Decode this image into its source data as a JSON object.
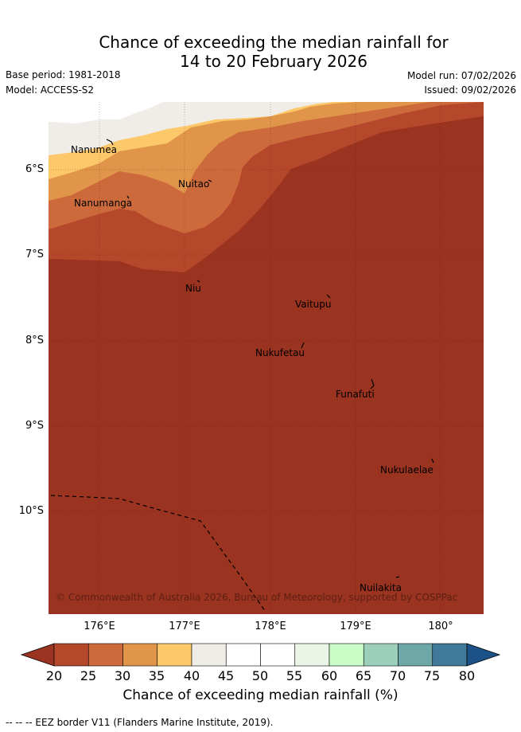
{
  "title": {
    "line1": "Chance of exceeding the median rainfall for",
    "line2": "14 to 20 February 2026"
  },
  "meta": {
    "base_period": "Base period: 1981-2018",
    "model": "Model: ACCESS-S2",
    "model_run": "Model run: 07/02/2026",
    "issued": "Issued: 09/02/2026"
  },
  "axes": {
    "lat_labels": [
      "6°S",
      "7°S",
      "8°S",
      "9°S",
      "10°S"
    ],
    "lon_labels": [
      "176°E",
      "177°E",
      "178°E",
      "179°E",
      "180°"
    ]
  },
  "places": [
    "Nanumea",
    "Nuitao",
    "Nanumanga",
    "Niu",
    "Vaitupu",
    "Nukufetau",
    "Funafuti",
    "Nukulaelae",
    "Nuilakita"
  ],
  "copyright": "© Commonwealth of Australia 2026, Bureau of Meteorology, supported by COSPPac",
  "colorbar": {
    "ticks": [
      "20",
      "25",
      "30",
      "35",
      "40",
      "45",
      "50",
      "55",
      "60",
      "65",
      "70",
      "75",
      "80"
    ],
    "colors": [
      "#b5472b",
      "#cc6a3c",
      "#e0954a",
      "#fdc86a",
      "#f0ede8",
      "#ffffff",
      "#ffffff",
      "#eaf5e8",
      "#cafcc8",
      "#9dd0bb",
      "#6da7a8",
      "#41799a"
    ],
    "under_color": "#9a3320",
    "over_color": "#1c5288",
    "label": "Chance of exceeding median rainfall (%)"
  },
  "footnote": "--  --  -- EEZ border V11 (Flanders Marine Institute, 2019)."
}
